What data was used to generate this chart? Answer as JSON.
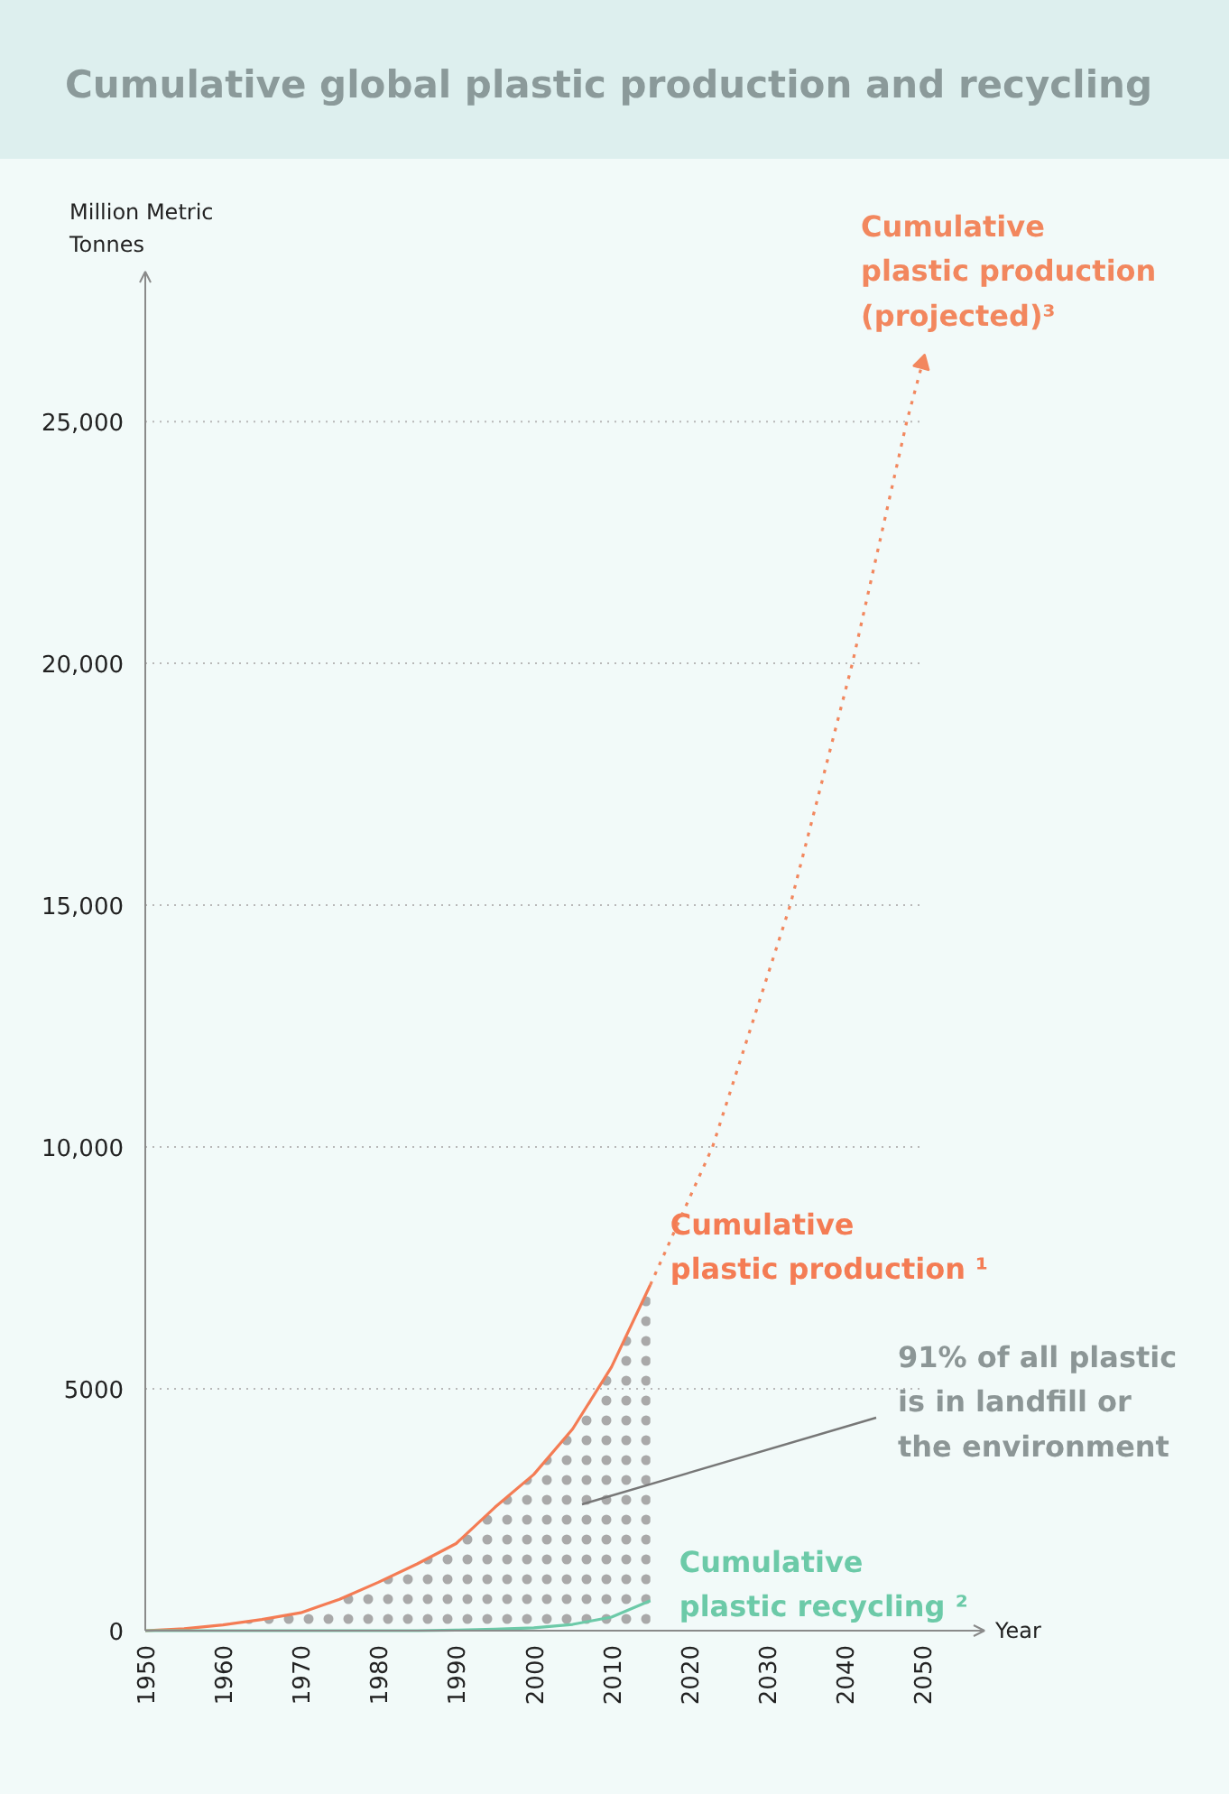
{
  "chart_data": {
    "type": "line",
    "title": "Cumulative global plastic production and recycling",
    "ylabel": "Million Metric Tonnes",
    "xlabel": "Year",
    "xlim": [
      1950,
      2058
    ],
    "xticks": [
      1950,
      1960,
      1970,
      1980,
      1990,
      2000,
      2010,
      2020,
      2030,
      2040,
      2050
    ],
    "ylim": [
      0,
      28100
    ],
    "yticks": [
      0,
      5000,
      {
        "value": 10000,
        "label": "10,000"
      },
      {
        "value": 15000,
        "label": "15,000"
      },
      {
        "value": 20000,
        "label": "20,000"
      },
      {
        "value": 25000,
        "label": "25,000"
      }
    ],
    "grid": "y",
    "marker": "none",
    "series": [
      {
        "type": "area",
        "name": "Cumulative plastic production ¹",
        "color": "#f47c54",
        "line_style": "solid",
        "x": [
          1950,
          1955,
          1960,
          1965,
          1970,
          1975,
          1980,
          1985,
          1990,
          1995,
          2000,
          2005,
          2010,
          2015
        ],
        "values": [
          0,
          40,
          120,
          230,
          370,
          650,
          1000,
          1380,
          1800,
          2550,
          3230,
          4170,
          5450,
          7150
        ]
      },
      {
        "name": "Cumulative plastic production (projected)³",
        "color": "#f2875e",
        "line_style": "dotted",
        "x": [
          2015,
          2023,
          2033,
          2041,
          2048,
          2050
        ],
        "values": [
          7150,
          10000,
          15000,
          20000,
          25000,
          26200
        ]
      },
      {
        "name": "Cumulative plastic recycling ²",
        "color": "#6ccaa8",
        "line_style": "solid",
        "x": [
          1950,
          1955,
          1960,
          1965,
          1970,
          1975,
          1980,
          1985,
          1990,
          1995,
          2000,
          2005,
          2010,
          2015
        ],
        "values": [
          0,
          0,
          0,
          0,
          0,
          0,
          0,
          0,
          10,
          30,
          60,
          130,
          280,
          620
        ]
      }
    ],
    "annotations": [
      "91% of all plastic is in landfill or the environment"
    ]
  }
}
